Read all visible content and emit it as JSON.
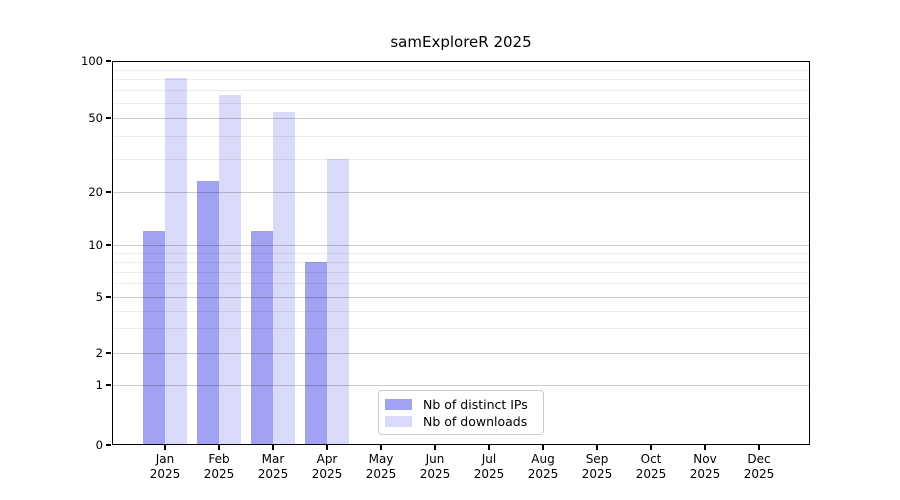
{
  "chart_data": {
    "type": "bar",
    "title": "samExploreR 2025",
    "x_year": "2025",
    "categories": [
      "Jan",
      "Feb",
      "Mar",
      "Apr",
      "May",
      "Jun",
      "Jul",
      "Aug",
      "Sep",
      "Oct",
      "Nov",
      "Dec"
    ],
    "series": [
      {
        "name": "Nb of distinct IPs",
        "color": "#a2a2f2",
        "values": [
          12,
          23,
          12,
          8,
          0,
          0,
          0,
          0,
          0,
          0,
          0,
          0
        ]
      },
      {
        "name": "Nb of downloads",
        "color": "#d9d9f9",
        "values": [
          81,
          66,
          54,
          30,
          0,
          0,
          0,
          0,
          0,
          0,
          0,
          0
        ]
      }
    ],
    "y_axis": {
      "scale": "symlog",
      "range": [
        0,
        100
      ],
      "ticks": [
        0,
        1,
        2,
        5,
        10,
        20,
        50,
        100
      ],
      "tick_labels": [
        "0",
        "1",
        "2",
        "5",
        "10",
        "20",
        "50",
        "100"
      ],
      "minor_ticks": [
        3,
        4,
        6,
        7,
        8,
        9,
        30,
        40,
        60,
        70,
        80,
        90
      ]
    },
    "legend": {
      "position": "inside-bottom-center",
      "entries": [
        "Nb of distinct IPs",
        "Nb of downloads"
      ]
    },
    "grid": "horizontal major and minor, drawn over bars",
    "background_color": "#ffffff"
  }
}
